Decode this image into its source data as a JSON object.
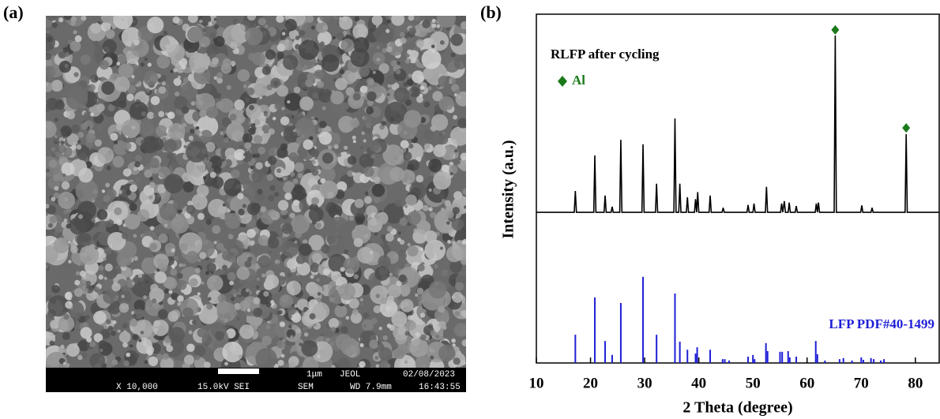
{
  "panel_a": {
    "label": "(a)",
    "scale_text": "1μm",
    "maker": "JEOL",
    "date": "02/08/2023",
    "magnification": "X 10,000",
    "voltage": "15.0kV SEI",
    "mode": "SEM",
    "wd": "WD 7.9mm",
    "time": "16:43:55"
  },
  "chart_data": {
    "type": "line",
    "panel_label": "(b)",
    "xlabel": "2 Theta (degree)",
    "ylabel": "Intensity (a.u.)",
    "xlim": [
      10,
      84.4
    ],
    "ylim": [
      0,
      100
    ],
    "xticks": [
      10,
      20,
      30,
      40,
      50,
      60,
      70,
      80
    ],
    "series": [
      {
        "name": "RLFP after cycling",
        "type": "line",
        "color": "#000000",
        "x": [
          10,
          17.0,
          17.2,
          17.4,
          20.6,
          20.8,
          21.0,
          22.5,
          22.7,
          22.9,
          23.8,
          24.0,
          24.2,
          25.4,
          25.6,
          25.8,
          29.5,
          29.7,
          29.9,
          32.0,
          32.2,
          32.4,
          35.4,
          35.6,
          35.8,
          36.3,
          36.5,
          36.7,
          37.7,
          37.9,
          38.1,
          39.2,
          39.4,
          39.6,
          39.8,
          40.0,
          41.9,
          42.1,
          42.3,
          44.3,
          44.5,
          44.7,
          48.9,
          49.1,
          49.3,
          50.0,
          50.2,
          50.4,
          52.3,
          52.5,
          52.7,
          55.1,
          55.3,
          55.5,
          55.8,
          56.0,
          56.5,
          56.7,
          56.9,
          57.8,
          58.0,
          58.2,
          61.5,
          61.7,
          61.9,
          62.1,
          62.3,
          65.0,
          65.2,
          65.4,
          69.9,
          70.1,
          70.3,
          71.8,
          72.0,
          72.2,
          78.1,
          78.3,
          78.5,
          84.4
        ],
        "values": [
          43.2,
          43.2,
          49.3,
          43.2,
          43.2,
          59.5,
          43.2,
          43.2,
          48,
          43.2,
          43.2,
          44.8,
          43.2,
          43.2,
          64,
          43.2,
          43.2,
          62.7,
          43.2,
          43.2,
          51.4,
          43.2,
          43.2,
          70.1,
          43.2,
          43.2,
          51.4,
          43.2,
          43.2,
          47.5,
          43.2,
          43.2,
          47,
          43.2,
          49,
          43.2,
          43.2,
          48,
          43.2,
          43.2,
          44.5,
          43.2,
          43.2,
          45.3,
          43.2,
          43.2,
          45.7,
          43.2,
          43.2,
          50.5,
          43.2,
          43.2,
          45.7,
          43.2,
          46.4,
          43.2,
          43.2,
          46,
          43.2,
          43.2,
          45,
          43.2,
          43.2,
          45.7,
          43.2,
          46,
          43.2,
          43.2,
          93.9,
          43.2,
          43.2,
          45.2,
          43.2,
          43.2,
          44.5,
          43.2,
          43.2,
          65.6,
          43.2,
          43.2
        ]
      },
      {
        "name": "LFP PDF#40-1499",
        "type": "stick",
        "color": "#1f1fd6",
        "x": [
          17.2,
          20.8,
          22.7,
          24.0,
          25.6,
          29.7,
          32.2,
          35.6,
          36.5,
          37.9,
          39.4,
          39.7,
          42.1,
          44.4,
          44.8,
          45.6,
          49.1,
          50.0,
          50.3,
          52.4,
          52.7,
          55.0,
          55.4,
          56.5,
          56.8,
          58.0,
          61.6,
          61.9,
          63.3,
          66.0,
          66.7,
          68.3,
          70.0,
          70.4,
          71.8,
          72.3,
          73.6,
          74.2
        ],
        "values": [
          8.1,
          18.8,
          6.3,
          2.3,
          17.2,
          24.7,
          8.1,
          19.9,
          6.1,
          3.8,
          2.7,
          4.5,
          3.8,
          1.1,
          1.1,
          0.7,
          1.8,
          2.3,
          1.1,
          5.7,
          3.4,
          3.2,
          3.2,
          3.4,
          1.6,
          1.8,
          6.3,
          2.5,
          0.7,
          1.1,
          1.4,
          0.7,
          1.6,
          0.9,
          1.4,
          1.1,
          0.7,
          1.1
        ]
      },
      {
        "name": "Al",
        "type": "scatter",
        "marker": "diamond",
        "color": "#1a7a1a",
        "x": [
          65.2,
          78.3
        ],
        "values": [
          95.5,
          67.4
        ]
      }
    ]
  }
}
